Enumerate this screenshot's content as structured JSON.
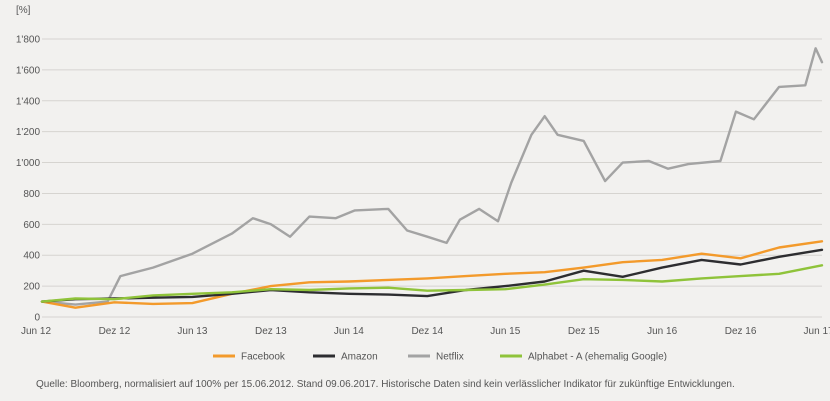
{
  "chart_data": {
    "type": "line",
    "unit_label": "[%]",
    "ylim": [
      0,
      1800
    ],
    "y_ticks": [
      0,
      200,
      400,
      600,
      800,
      1000,
      1200,
      1400,
      1600,
      1800
    ],
    "y_tick_labels": [
      "0",
      "200",
      "400",
      "600",
      "800",
      "1'000",
      "1'200",
      "1'400",
      "1'600",
      "1'800"
    ],
    "x_range": [
      "2012-06-15",
      "2017-06-09"
    ],
    "x_ticks": [
      "2012-06",
      "2012-12",
      "2013-06",
      "2013-12",
      "2014-06",
      "2014-12",
      "2015-06",
      "2015-12",
      "2016-06",
      "2016-12",
      "2017-06"
    ],
    "x_tick_labels": [
      "Jun 12",
      "Dez 12",
      "Jun 13",
      "Dez 13",
      "Jun 14",
      "Dez 14",
      "Jun 15",
      "Dez 15",
      "Jun 16",
      "Dez 16",
      "Jun 17"
    ],
    "grid": "horizontal",
    "legend_position": "bottom",
    "series": [
      {
        "name": "Facebook",
        "color": "#f39a2b",
        "x": [
          "2012-06-15",
          "2012-09-01",
          "2012-12-01",
          "2013-03-01",
          "2013-06-01",
          "2013-09-01",
          "2013-12-01",
          "2014-03-01",
          "2014-06-01",
          "2014-09-01",
          "2014-12-01",
          "2015-03-01",
          "2015-06-01",
          "2015-09-01",
          "2015-12-01",
          "2016-03-01",
          "2016-06-01",
          "2016-09-01",
          "2016-12-01",
          "2017-03-01",
          "2017-06-09"
        ],
        "values": [
          100,
          60,
          95,
          85,
          90,
          150,
          200,
          225,
          230,
          240,
          250,
          265,
          280,
          290,
          320,
          355,
          370,
          410,
          380,
          450,
          490
        ]
      },
      {
        "name": "Amazon",
        "color": "#2d2d30",
        "x": [
          "2012-06-15",
          "2012-09-01",
          "2012-12-01",
          "2013-03-01",
          "2013-06-01",
          "2013-09-01",
          "2013-12-01",
          "2014-03-01",
          "2014-06-01",
          "2014-09-01",
          "2014-12-01",
          "2015-03-01",
          "2015-06-01",
          "2015-09-01",
          "2015-12-01",
          "2016-03-01",
          "2016-06-01",
          "2016-09-01",
          "2016-12-01",
          "2017-03-01",
          "2017-06-09"
        ],
        "values": [
          100,
          115,
          120,
          125,
          130,
          150,
          175,
          160,
          150,
          145,
          135,
          175,
          200,
          230,
          300,
          260,
          320,
          370,
          340,
          390,
          435
        ]
      },
      {
        "name": "Netflix",
        "color": "#a3a3a3",
        "x": [
          "2012-06-15",
          "2012-09-01",
          "2012-11-15",
          "2012-12-15",
          "2013-03-01",
          "2013-06-01",
          "2013-09-01",
          "2013-10-20",
          "2013-12-01",
          "2014-01-15",
          "2014-03-01",
          "2014-05-01",
          "2014-06-15",
          "2014-09-01",
          "2014-10-15",
          "2014-12-01",
          "2015-01-15",
          "2015-02-15",
          "2015-04-01",
          "2015-05-15",
          "2015-06-15",
          "2015-08-01",
          "2015-09-01",
          "2015-10-01",
          "2015-12-01",
          "2016-01-20",
          "2016-03-01",
          "2016-05-01",
          "2016-06-15",
          "2016-08-01",
          "2016-10-15",
          "2016-11-20",
          "2017-01-01",
          "2017-03-01",
          "2017-05-01",
          "2017-05-25",
          "2017-06-09"
        ],
        "values": [
          100,
          80,
          100,
          265,
          320,
          410,
          540,
          640,
          600,
          520,
          650,
          640,
          690,
          700,
          560,
          520,
          480,
          630,
          700,
          620,
          870,
          1180,
          1300,
          1180,
          1140,
          880,
          1000,
          1010,
          960,
          990,
          1010,
          1330,
          1280,
          1490,
          1500,
          1740,
          1650
        ]
      },
      {
        "name": "Alphabet - A (ehemalig Google)",
        "color": "#8fc33a",
        "x": [
          "2012-06-15",
          "2012-09-01",
          "2012-12-01",
          "2013-03-01",
          "2013-06-01",
          "2013-09-01",
          "2013-12-01",
          "2014-03-01",
          "2014-06-01",
          "2014-09-01",
          "2014-12-01",
          "2015-03-01",
          "2015-06-01",
          "2015-09-01",
          "2015-12-01",
          "2016-03-01",
          "2016-06-01",
          "2016-09-01",
          "2016-12-01",
          "2017-03-01",
          "2017-06-09"
        ],
        "values": [
          100,
          120,
          115,
          140,
          150,
          160,
          180,
          175,
          185,
          190,
          170,
          175,
          180,
          210,
          245,
          240,
          230,
          250,
          265,
          280,
          335
        ]
      }
    ]
  },
  "source_note": "Quelle: Bloomberg, normalisiert auf 100% per 15.06.2012. Stand 09.06.2017. Historische Daten sind kein verlässlicher Indikator für zukünftige Entwicklungen."
}
